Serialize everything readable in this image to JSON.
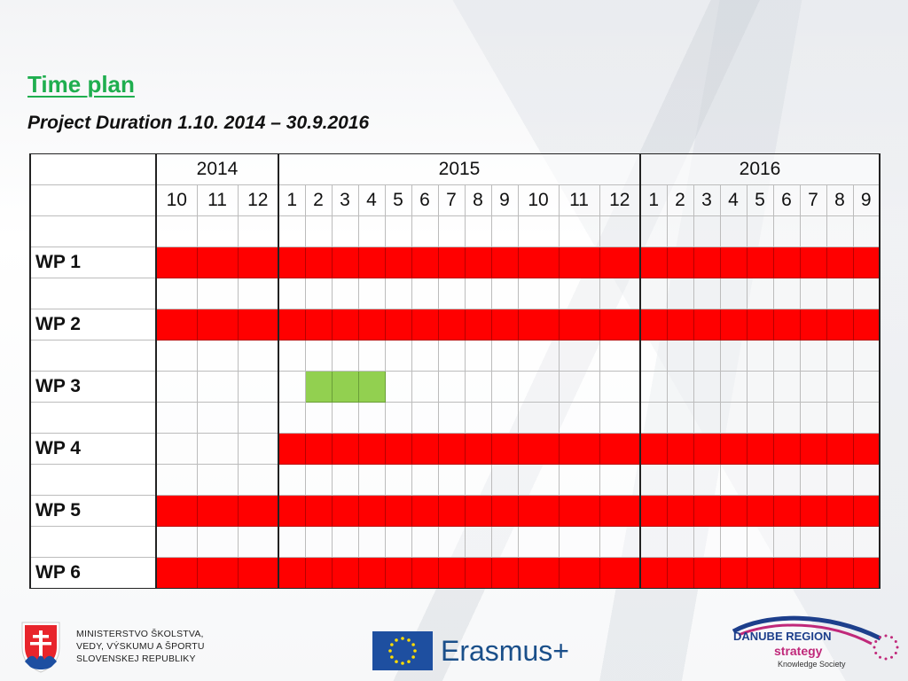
{
  "title": "Time plan",
  "subtitle": "Project Duration 1.10. 2014 – 30.9.2016",
  "table": {
    "years": [
      {
        "label": "2014",
        "span": 3
      },
      {
        "label": "2015",
        "span": 12
      },
      {
        "label": "2016",
        "span": 9
      }
    ],
    "months": [
      "10",
      "11",
      "12",
      "1",
      "2",
      "3",
      "4",
      "5",
      "6",
      "7",
      "8",
      "9",
      "10",
      "11",
      "12",
      "1",
      "2",
      "3",
      "4",
      "5",
      "6",
      "7",
      "8",
      "9"
    ],
    "rows": [
      {
        "label": "",
        "fill": "none",
        "from": 0,
        "to": -1
      },
      {
        "label": "WP 1",
        "fill": "red",
        "from": 0,
        "to": 23
      },
      {
        "label": "",
        "fill": "none",
        "from": 0,
        "to": -1
      },
      {
        "label": "WP 2",
        "fill": "red",
        "from": 0,
        "to": 23
      },
      {
        "label": "",
        "fill": "none",
        "from": 0,
        "to": -1
      },
      {
        "label": "WP 3",
        "fill": "green",
        "from": 4,
        "to": 6
      },
      {
        "label": "",
        "fill": "none",
        "from": 0,
        "to": -1
      },
      {
        "label": "WP 4",
        "fill": "red",
        "from": 3,
        "to": 23
      },
      {
        "label": "",
        "fill": "none",
        "from": 0,
        "to": -1
      },
      {
        "label": "WP 5",
        "fill": "red",
        "from": 0,
        "to": 23
      },
      {
        "label": "",
        "fill": "none",
        "from": 0,
        "to": -1
      },
      {
        "label": "WP 6",
        "fill": "red",
        "from": 0,
        "to": 23
      }
    ],
    "colors": {
      "red": "#ff0000",
      "green": "#92d050"
    }
  },
  "logos": {
    "ministry": {
      "lines": [
        "MINISTERSTVO ŠKOLSTVA,",
        "VEDY, VÝSKUMU A ŠPORTU",
        "SLOVENSKEJ REPUBLIKY"
      ],
      "icon": "slovak-coat-of-arms"
    },
    "erasmus": {
      "text": "Erasmus+",
      "icon": "eu-flag"
    },
    "danube": {
      "line1": "DANUBE REGION",
      "line2": "strategy",
      "line3": "Knowledge Society"
    }
  }
}
